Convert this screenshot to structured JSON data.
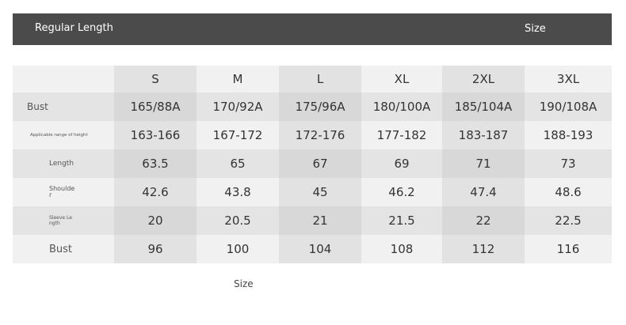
{
  "header": {
    "title": "Regular Length",
    "size_label": "Size"
  },
  "table": {
    "columns": [
      "S",
      "M",
      "L",
      "XL",
      "2XL",
      "3XL"
    ],
    "rows": [
      {
        "label": "Bust",
        "values": [
          "165/88A",
          "170/92A",
          "175/96A",
          "180/100A",
          "185/104A",
          "190/108A"
        ]
      },
      {
        "label": "Applicable range of height",
        "values": [
          "163-166",
          "167-172",
          "172-176",
          "177-182",
          "183-187",
          "188-193"
        ]
      },
      {
        "label": "Length",
        "values": [
          "63.5",
          "65",
          "67",
          "69",
          "71",
          "73"
        ]
      },
      {
        "label": "Shoulde r",
        "values": [
          "42.6",
          "43.8",
          "45",
          "46.2",
          "47.4",
          "48.6"
        ]
      },
      {
        "label": "Sleeve Le ngth",
        "values": [
          "20",
          "20.5",
          "21",
          "21.5",
          "22",
          "22.5"
        ]
      },
      {
        "label": "Bust",
        "values": [
          "96",
          "100",
          "104",
          "108",
          "112",
          "116"
        ]
      }
    ]
  },
  "footer": {
    "size_label": "Size"
  }
}
